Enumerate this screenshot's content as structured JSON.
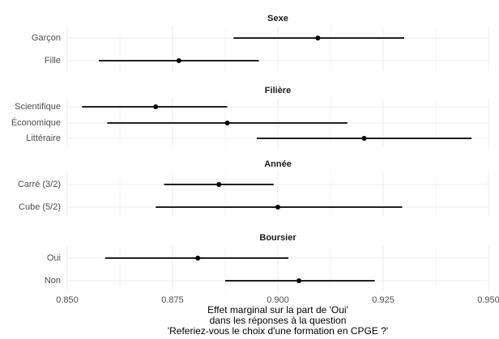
{
  "chart_data": {
    "type": "forest",
    "xlim": [
      0.85,
      0.95
    ],
    "x_ticks": [
      {
        "value": 0.85,
        "label": "0.850"
      },
      {
        "value": 0.875,
        "label": "0.875"
      },
      {
        "value": 0.9,
        "label": "0.900"
      },
      {
        "value": 0.925,
        "label": "0.925"
      },
      {
        "value": 0.95,
        "label": "0.950"
      }
    ],
    "xlabel": [
      "Effet marginal sur la part de 'Oui'",
      "dans les réponses à la question",
      "'Referiez-vous le choix d'une formation en CPGE ?'"
    ],
    "grid": true,
    "panels": [
      {
        "title": "Sexe",
        "rows": [
          {
            "label": "Garçon",
            "estimate": 0.9095,
            "low": 0.8895,
            "high": 0.93
          },
          {
            "label": "Fille",
            "estimate": 0.8765,
            "low": 0.8575,
            "high": 0.8955
          }
        ]
      },
      {
        "title": "Filière",
        "rows": [
          {
            "label": "Scientifique",
            "estimate": 0.871,
            "low": 0.8535,
            "high": 0.888
          },
          {
            "label": "Économique",
            "estimate": 0.888,
            "low": 0.8595,
            "high": 0.9165
          },
          {
            "label": "Littéraire",
            "estimate": 0.9205,
            "low": 0.895,
            "high": 0.946
          }
        ]
      },
      {
        "title": "Année",
        "rows": [
          {
            "label": "Carré (3/2)",
            "estimate": 0.886,
            "low": 0.873,
            "high": 0.899
          },
          {
            "label": "Cube (5/2)",
            "estimate": 0.9,
            "low": 0.871,
            "high": 0.9295
          }
        ]
      },
      {
        "title": "Boursier",
        "rows": [
          {
            "label": "Oui",
            "estimate": 0.881,
            "low": 0.859,
            "high": 0.9025
          },
          {
            "label": "Non",
            "estimate": 0.905,
            "low": 0.8875,
            "high": 0.923
          }
        ]
      }
    ]
  }
}
